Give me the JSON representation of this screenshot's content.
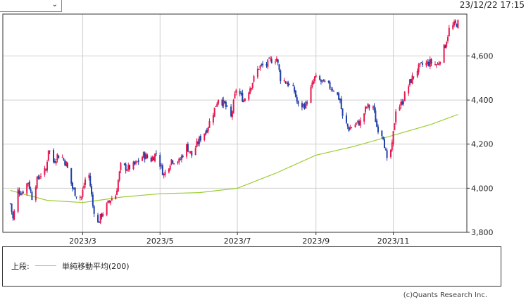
{
  "header": {
    "timestamp": "23/12/22 17:15",
    "period_select_icon": "chevron-down-icon"
  },
  "legend": {
    "label": "上段:",
    "series_name": "単純移動平均(200)"
  },
  "copyright": "(c)Quants Research Inc.",
  "colors": {
    "up": "#e8174f",
    "down": "#1f3fa8",
    "sma": "#9acd32",
    "grid": "#cfcfcf",
    "frame": "#333333"
  },
  "chart_data": {
    "type": "candlestick",
    "x_tick_labels": [
      "2023/3",
      "2023/5",
      "2023/7",
      "2023/9",
      "2023/11"
    ],
    "x_ticks": [
      "2023-03-01",
      "2023-05-01",
      "2023-07-01",
      "2023-09-01",
      "2023-11-01"
    ],
    "x_range": [
      "2022-12-28",
      "2023-12-29"
    ],
    "y_tick_labels": [
      "3,800",
      "4,000",
      "4,200",
      "4,400",
      "4,600"
    ],
    "y_ticks": [
      3800,
      4000,
      4200,
      4400,
      4600
    ],
    "ylim": [
      3800,
      4790
    ],
    "grid": true,
    "price_closes": [
      [
        "2023-01-03",
        3930
      ],
      [
        "2023-01-05",
        3860
      ],
      [
        "2023-01-09",
        3990
      ],
      [
        "2023-01-12",
        3980
      ],
      [
        "2023-01-17",
        4030
      ],
      [
        "2023-01-20",
        3960
      ],
      [
        "2023-01-23",
        4020
      ],
      [
        "2023-01-26",
        4060
      ],
      [
        "2023-01-31",
        4080
      ],
      [
        "2023-02-02",
        4180
      ],
      [
        "2023-02-06",
        4120
      ],
      [
        "2023-02-09",
        4150
      ],
      [
        "2023-02-13",
        4140
      ],
      [
        "2023-02-16",
        4110
      ],
      [
        "2023-02-21",
        4000
      ],
      [
        "2023-02-24",
        3970
      ],
      [
        "2023-02-28",
        3960
      ],
      [
        "2023-03-03",
        4040
      ],
      [
        "2023-03-06",
        4060
      ],
      [
        "2023-03-09",
        3920
      ],
      [
        "2023-03-13",
        3840
      ],
      [
        "2023-03-16",
        3880
      ],
      [
        "2023-03-20",
        3920
      ],
      [
        "2023-03-23",
        3950
      ],
      [
        "2023-03-27",
        3970
      ],
      [
        "2023-03-31",
        4100
      ],
      [
        "2023-04-06",
        4090
      ],
      [
        "2023-04-12",
        4110
      ],
      [
        "2023-04-18",
        4150
      ],
      [
        "2023-04-24",
        4130
      ],
      [
        "2023-04-28",
        4160
      ],
      [
        "2023-05-04",
        4060
      ],
      [
        "2023-05-10",
        4130
      ],
      [
        "2023-05-16",
        4120
      ],
      [
        "2023-05-22",
        4190
      ],
      [
        "2023-05-26",
        4150
      ],
      [
        "2023-06-01",
        4220
      ],
      [
        "2023-06-07",
        4270
      ],
      [
        "2023-06-13",
        4360
      ],
      [
        "2023-06-16",
        4410
      ],
      [
        "2023-06-21",
        4380
      ],
      [
        "2023-06-26",
        4320
      ],
      [
        "2023-06-30",
        4450
      ],
      [
        "2023-07-06",
        4400
      ],
      [
        "2023-07-12",
        4470
      ],
      [
        "2023-07-18",
        4550
      ],
      [
        "2023-07-24",
        4560
      ],
      [
        "2023-07-27",
        4580
      ],
      [
        "2023-08-01",
        4590
      ],
      [
        "2023-08-04",
        4500
      ],
      [
        "2023-08-09",
        4480
      ],
      [
        "2023-08-15",
        4440
      ],
      [
        "2023-08-18",
        4370
      ],
      [
        "2023-08-24",
        4380
      ],
      [
        "2023-08-31",
        4500
      ],
      [
        "2023-09-06",
        4480
      ],
      [
        "2023-09-12",
        4460
      ],
      [
        "2023-09-15",
        4450
      ],
      [
        "2023-09-20",
        4400
      ],
      [
        "2023-09-22",
        4320
      ],
      [
        "2023-09-27",
        4270
      ],
      [
        "2023-10-02",
        4290
      ],
      [
        "2023-10-06",
        4300
      ],
      [
        "2023-10-11",
        4370
      ],
      [
        "2023-10-16",
        4370
      ],
      [
        "2023-10-19",
        4280
      ],
      [
        "2023-10-24",
        4240
      ],
      [
        "2023-10-27",
        4120
      ],
      [
        "2023-10-31",
        4190
      ],
      [
        "2023-11-03",
        4360
      ],
      [
        "2023-11-07",
        4380
      ],
      [
        "2023-11-14",
        4480
      ],
      [
        "2023-11-20",
        4540
      ],
      [
        "2023-11-24",
        4560
      ],
      [
        "2023-11-30",
        4570
      ],
      [
        "2023-12-06",
        4560
      ],
      [
        "2023-12-12",
        4650
      ],
      [
        "2023-12-15",
        4720
      ],
      [
        "2023-12-19",
        4740
      ],
      [
        "2023-12-22",
        4750
      ]
    ],
    "series": [
      {
        "name": "単純移動平均(200)",
        "points": [
          [
            "2023-01-03",
            3990
          ],
          [
            "2023-02-01",
            3945
          ],
          [
            "2023-03-01",
            3935
          ],
          [
            "2023-04-01",
            3960
          ],
          [
            "2023-05-01",
            3975
          ],
          [
            "2023-06-01",
            3980
          ],
          [
            "2023-07-01",
            4000
          ],
          [
            "2023-08-01",
            4070
          ],
          [
            "2023-09-01",
            4150
          ],
          [
            "2023-10-01",
            4190
          ],
          [
            "2023-11-01",
            4240
          ],
          [
            "2023-12-01",
            4290
          ],
          [
            "2023-12-22",
            4335
          ]
        ]
      }
    ]
  }
}
